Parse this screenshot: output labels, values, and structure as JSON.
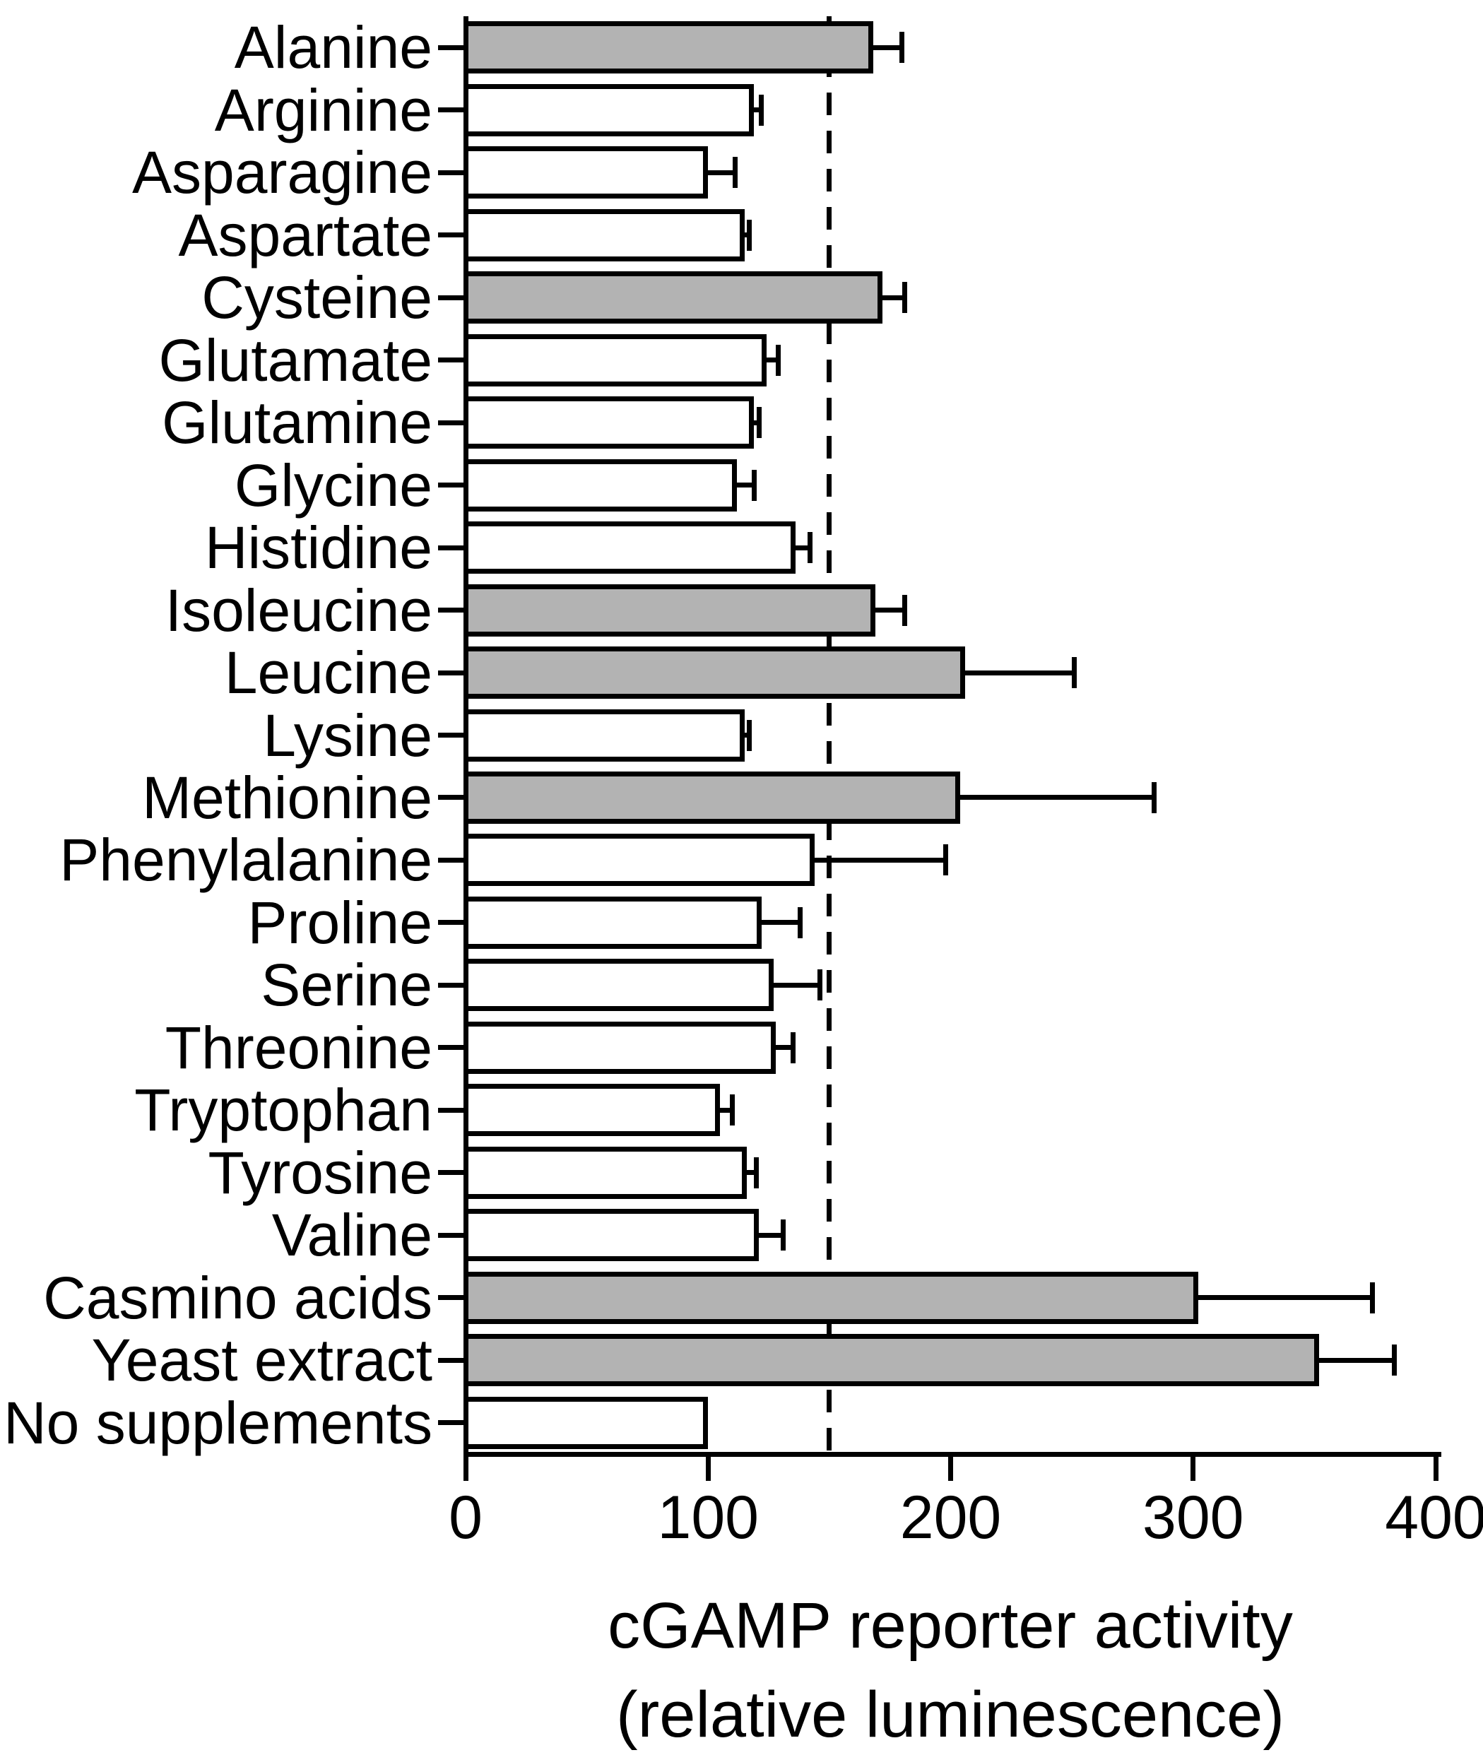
{
  "figure": {
    "axis_title_line1": "cGAMP reporter activity",
    "axis_title_line2": "(relative luminescence)"
  },
  "chart_data": {
    "type": "bar",
    "orientation": "horizontal",
    "title": "",
    "xlabel": "cGAMP reporter activity (relative luminescence)",
    "ylabel": "",
    "xlim": [
      0,
      400
    ],
    "x_ticks": [
      0,
      100,
      200,
      300,
      400
    ],
    "grid": false,
    "reference_line_x": 150,
    "reference_line_style": "dashed",
    "categories": [
      "Alanine",
      "Arginine",
      "Asparagine",
      "Aspartate",
      "Cysteine",
      "Glutamate",
      "Glutamine",
      "Glycine",
      "Histidine",
      "Isoleucine",
      "Leucine",
      "Lysine",
      "Methionine",
      "Phenylalanine",
      "Proline",
      "Serine",
      "Threonine",
      "Tryptophan",
      "Tyrosine",
      "Valine",
      "Casmino acids",
      "Yeast extract",
      "No supplements"
    ],
    "values": [
      168,
      119,
      100,
      115,
      172,
      124,
      119,
      112,
      136,
      169,
      206,
      115,
      204,
      144,
      122,
      127,
      128,
      105,
      116,
      121,
      302,
      352,
      100
    ],
    "error_upper_delta": [
      12,
      3,
      11,
      2,
      9,
      5,
      2,
      7,
      6,
      12,
      45,
      2,
      80,
      54,
      16,
      19,
      7,
      5,
      4,
      10,
      72,
      31,
      0
    ],
    "highlighted_gray": [
      true,
      false,
      false,
      false,
      true,
      false,
      false,
      false,
      false,
      true,
      true,
      false,
      true,
      false,
      false,
      false,
      false,
      false,
      false,
      false,
      true,
      true,
      false
    ],
    "colors": {
      "bar_fill_highlight": "#b3b3b3",
      "bar_fill_default": "#ffffff",
      "bar_border": "#000000",
      "axis": "#000000",
      "text": "#000000"
    }
  }
}
